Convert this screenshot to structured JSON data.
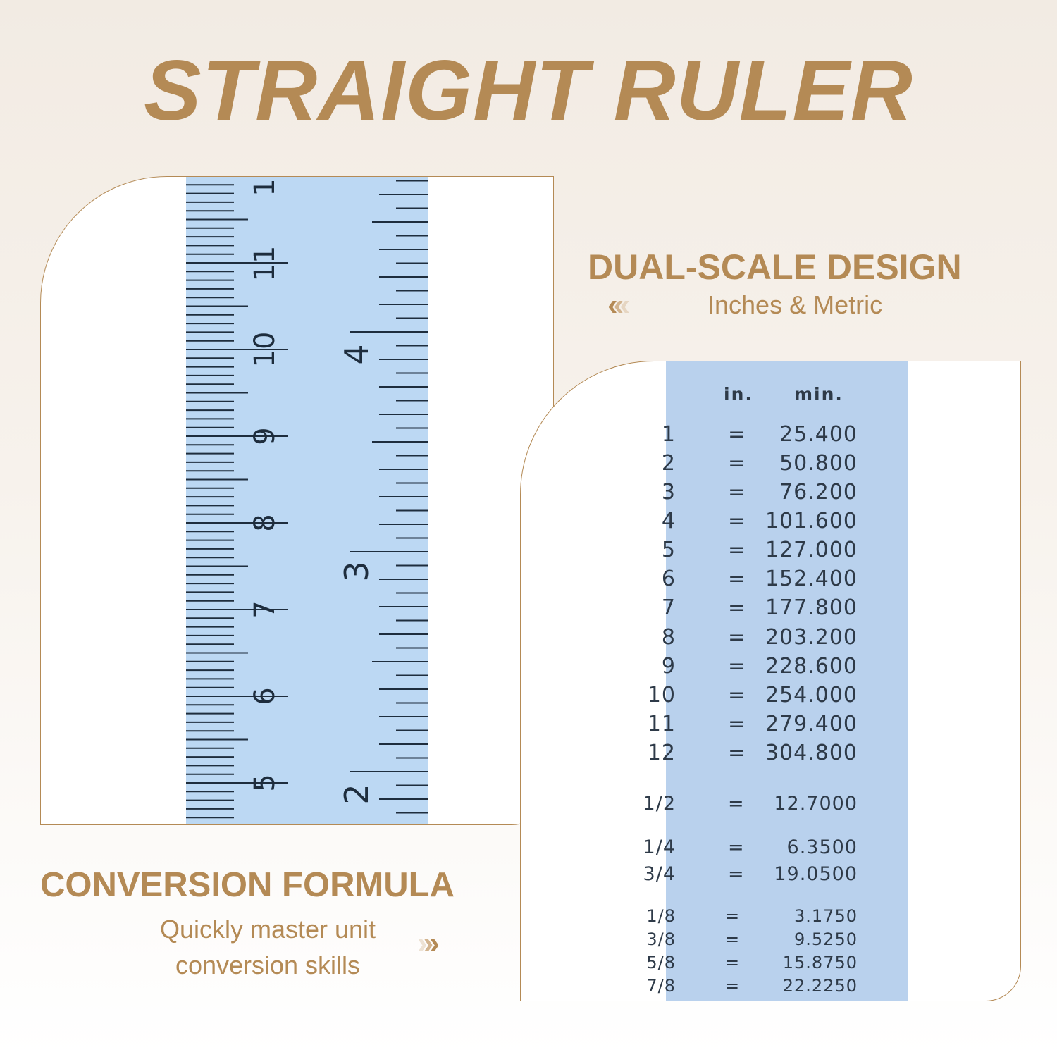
{
  "title": "STRAIGHT RULER",
  "feature1": {
    "heading": "DUAL-SCALE DESIGN",
    "subtitle": "Inches & Metric",
    "arrow_icon": "chevrons-left"
  },
  "feature2": {
    "heading": "CONVERSION FORMULA",
    "subtitle_line1": "Quickly master unit",
    "subtitle_line2": "conversion skills",
    "arrow_icon": "chevrons-right"
  },
  "ruler": {
    "cm_labels": [
      "1",
      "11",
      "10",
      "9",
      "8",
      "7",
      "6",
      "5"
    ],
    "inch_labels": [
      "4",
      "3",
      "2"
    ]
  },
  "conversion": {
    "header_in": "in.",
    "header_mm": "min.",
    "rows": [
      {
        "in": "1",
        "mm": "25.400"
      },
      {
        "in": "2",
        "mm": "50.800"
      },
      {
        "in": "3",
        "mm": "76.200"
      },
      {
        "in": "4",
        "mm": "101.600"
      },
      {
        "in": "5",
        "mm": "127.000"
      },
      {
        "in": "6",
        "mm": "152.400"
      },
      {
        "in": "7",
        "mm": "177.800"
      },
      {
        "in": "8",
        "mm": "203.200"
      },
      {
        "in": "9",
        "mm": "228.600"
      },
      {
        "in": "10",
        "mm": "254.000"
      },
      {
        "in": "11",
        "mm": "279.400"
      },
      {
        "in": "12",
        "mm": "304.800"
      },
      {
        "in": "1/2",
        "mm": "12.7000"
      },
      {
        "in": "1/4",
        "mm": "6.3500"
      },
      {
        "in": "3/4",
        "mm": "19.0500"
      },
      {
        "in": "1/8",
        "mm": "3.1750"
      },
      {
        "in": "3/8",
        "mm": "9.5250"
      },
      {
        "in": "5/8",
        "mm": "15.8750"
      },
      {
        "in": "7/8",
        "mm": "22.2250"
      }
    ]
  },
  "colors": {
    "accent": "#b48a55",
    "ruler_blue": "#bcd8f3"
  }
}
